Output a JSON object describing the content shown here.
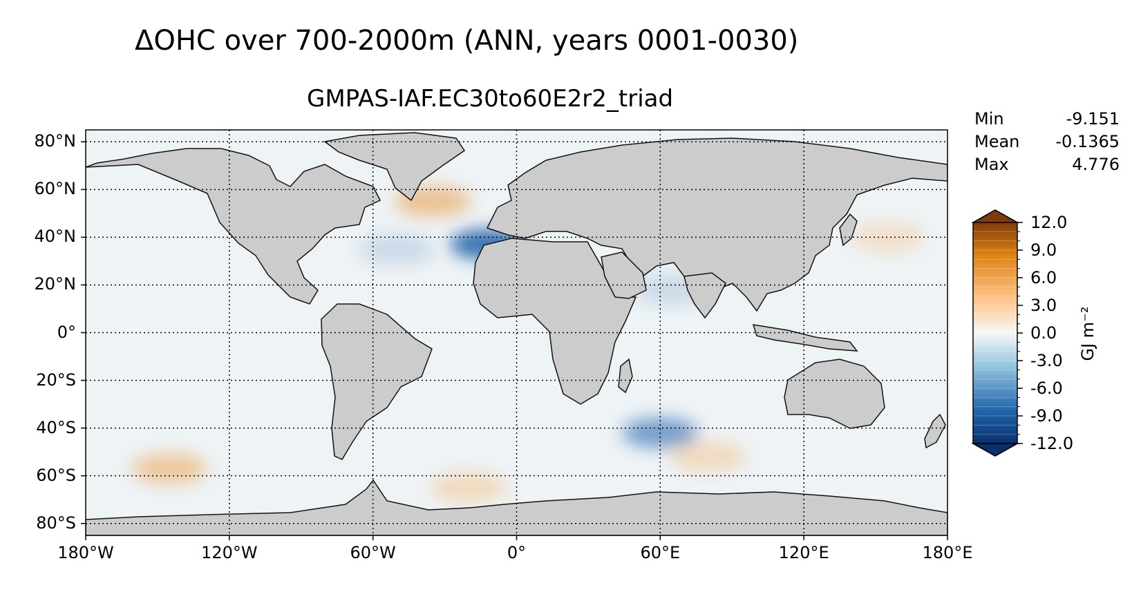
{
  "title": "ΔOHC over 700-2000m (ANN, years 0001-0030)",
  "subtitle": "GMPAS-IAF.EC30to60E2r2_triad",
  "map": {
    "projection": "plate carree",
    "extent": {
      "lon": [
        -180,
        180
      ],
      "lat": [
        -85,
        85
      ]
    },
    "gridlines": "dotted",
    "land_color": "#cccccc",
    "lat_ticks": [
      {
        "value": 80,
        "label": "80°N"
      },
      {
        "value": 60,
        "label": "60°N"
      },
      {
        "value": 40,
        "label": "40°N"
      },
      {
        "value": 20,
        "label": "20°N"
      },
      {
        "value": 0,
        "label": "0°"
      },
      {
        "value": -20,
        "label": "20°S"
      },
      {
        "value": -40,
        "label": "40°S"
      },
      {
        "value": -60,
        "label": "60°S"
      },
      {
        "value": -80,
        "label": "80°S"
      }
    ],
    "lon_ticks": [
      {
        "value": -180,
        "label": "180°W"
      },
      {
        "value": -120,
        "label": "120°W"
      },
      {
        "value": -60,
        "label": "60°W"
      },
      {
        "value": 0,
        "label": "0°"
      },
      {
        "value": 60,
        "label": "60°E"
      },
      {
        "value": 120,
        "label": "120°E"
      },
      {
        "value": 180,
        "label": "180°E"
      }
    ]
  },
  "stats": [
    {
      "label": "Min",
      "value": "-9.151"
    },
    {
      "label": "Mean",
      "value": "-0.1365"
    },
    {
      "label": "Max",
      "value": "4.776"
    }
  ],
  "colorbar": {
    "label": "GJ m⁻²",
    "min": -12.0,
    "max": 12.0,
    "extend": "both",
    "colormap": "diverging blue-white-orange",
    "colors": {
      "low": "#08306b",
      "mid": "#f7f7f7",
      "high": "#7f3b08"
    },
    "ticks": [
      {
        "value": 12,
        "label": "12.0"
      },
      {
        "value": 9,
        "label": "9.0"
      },
      {
        "value": 6,
        "label": "6.0"
      },
      {
        "value": 3,
        "label": "3.0"
      },
      {
        "value": 0,
        "label": "0.0"
      },
      {
        "value": -3,
        "label": "-3.0"
      },
      {
        "value": -6,
        "label": "-6.0"
      },
      {
        "value": -9,
        "label": "-9.0"
      },
      {
        "value": -12,
        "label": "-12.0"
      }
    ]
  },
  "anomalies": [
    {
      "name": "north-atlantic-warm",
      "lon": -35,
      "lat": 55,
      "value": 4.5
    },
    {
      "name": "iberian-cold",
      "lon": -12,
      "lat": 37,
      "value": -9.0
    },
    {
      "name": "gulf-stream-cold",
      "lon": -50,
      "lat": 35,
      "value": -2.0
    },
    {
      "name": "south-pacific-warm",
      "lon": -145,
      "lat": -57,
      "value": 4.0
    },
    {
      "name": "south-indian-cold",
      "lon": 60,
      "lat": -42,
      "value": -6.0
    },
    {
      "name": "southern-atlantic-warm",
      "lon": -20,
      "lat": -65,
      "value": 2.5
    },
    {
      "name": "arabian-sea-cold",
      "lon": 65,
      "lat": 18,
      "value": -2.0
    },
    {
      "name": "pacific-east-warm",
      "lon": 155,
      "lat": 40,
      "value": 2.0
    },
    {
      "name": "southern-ocean-warm",
      "lon": 80,
      "lat": -52,
      "value": 2.5
    }
  ]
}
